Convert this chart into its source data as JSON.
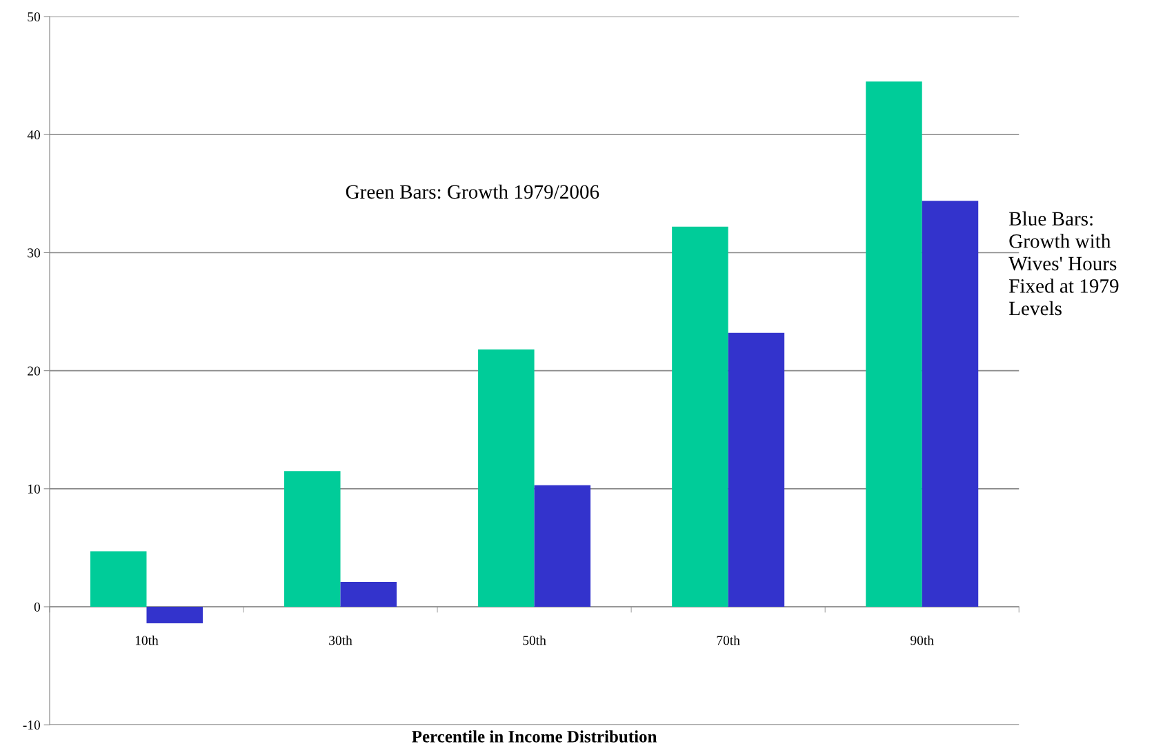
{
  "chart_data": {
    "type": "bar",
    "xlabel": "Percentile in Income Distribution",
    "categories": [
      "10th",
      "30th",
      "50th",
      "70th",
      "90th"
    ],
    "series": [
      {
        "color": "#00cc99",
        "values": [
          4.7,
          11.5,
          21.8,
          32.2,
          44.5
        ]
      },
      {
        "color": "#3333cc",
        "values": [
          -1.4,
          2.1,
          10.3,
          23.2,
          34.4
        ]
      }
    ],
    "ylim": [
      -10,
      50
    ],
    "yticks": [
      -10,
      0,
      10,
      20,
      30,
      40,
      50
    ],
    "grid": "y",
    "legend": false,
    "annotations": [
      "Green Bars: Growth 1979/2006",
      "Blue Bars: Growth with Wives' Hours Fixed at 1979 Levels"
    ]
  }
}
